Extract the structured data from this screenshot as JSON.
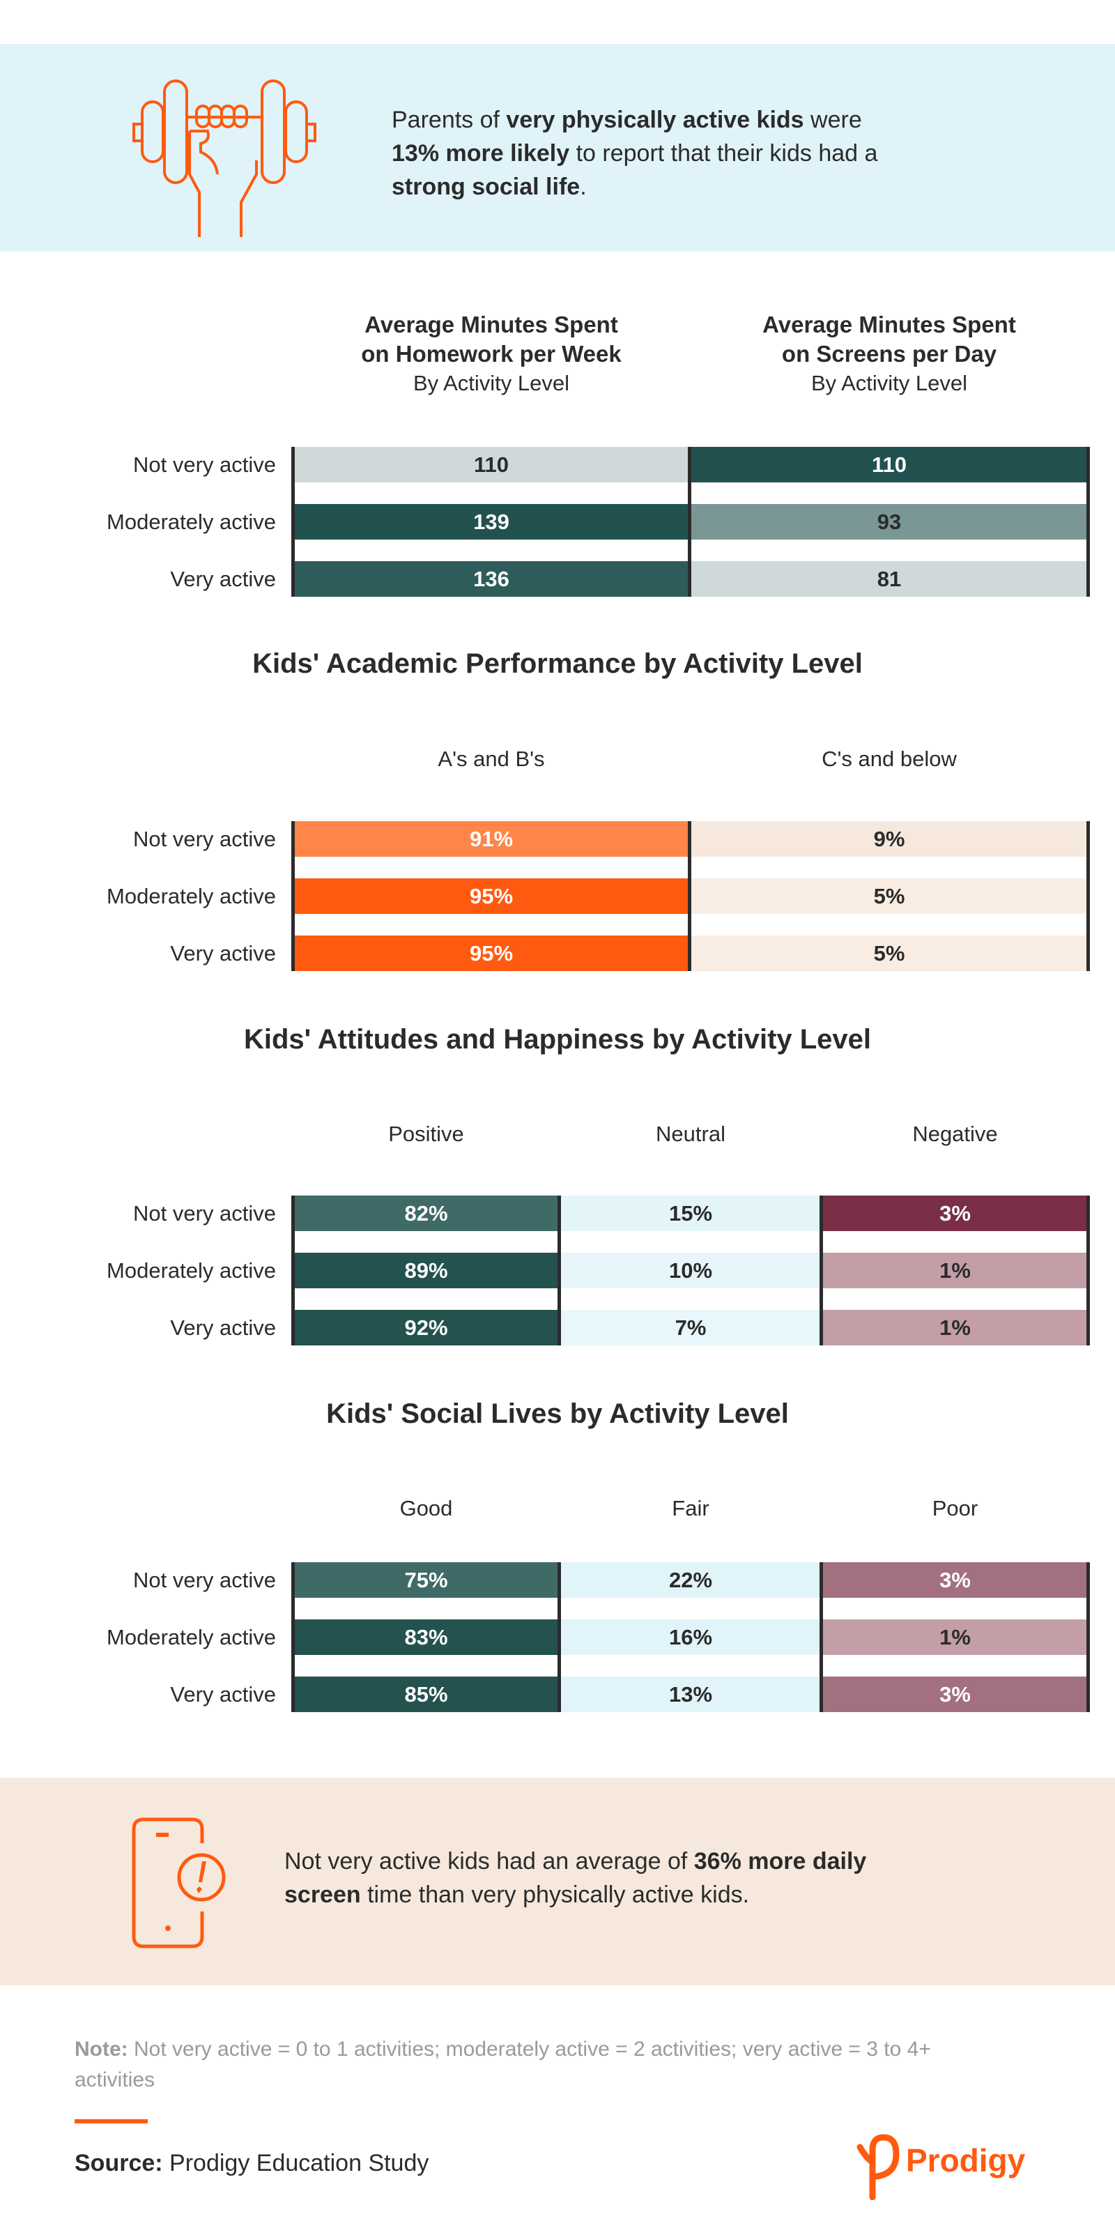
{
  "colors": {
    "accent": "#ff5a0f",
    "text": "#2b2b2b",
    "top_banner": "#dff3f9",
    "bottom_banner": "#f6e8dc"
  },
  "top_callout": {
    "icon": "dumbbell-hand-icon",
    "line1": {
      "a": "Parents of ",
      "b": "very physically active kids",
      "c": " were"
    },
    "line2": {
      "a": "13% more likely",
      "b": " to report that their kids had a"
    },
    "line3": {
      "a": "strong social life",
      "b": "."
    }
  },
  "chart_data": [
    {
      "type": "table",
      "columns": [
        {
          "heading": "Average Minutes Spent",
          "heading2": "on Homework per Week",
          "subheading": "By Activity Level"
        },
        {
          "heading": "Average Minutes Spent",
          "heading2": "on Screens per Day",
          "subheading": "By Activity Level"
        }
      ],
      "rows": [
        {
          "label": "Not very active",
          "cells": [
            {
              "value": "110",
              "color": "#cfd9da",
              "text": "#2b2b2b"
            },
            {
              "value": "110",
              "color": "#22524f",
              "text": "#ffffff"
            }
          ]
        },
        {
          "label": "Moderately active",
          "cells": [
            {
              "value": "139",
              "color": "#22524f",
              "text": "#ffffff"
            },
            {
              "value": "93",
              "color": "#7a9795",
              "text": "#2b2b2b"
            }
          ]
        },
        {
          "label": "Very active",
          "cells": [
            {
              "value": "136",
              "color": "#2e5c5b",
              "text": "#ffffff"
            },
            {
              "value": "81",
              "color": "#cfd9da",
              "text": "#2b2b2b"
            }
          ]
        }
      ]
    },
    {
      "type": "table",
      "title": "Kids' Academic Performance by Activity Level",
      "columns": [
        {
          "heading": "A's and B's"
        },
        {
          "heading": "C's and below"
        }
      ],
      "rows": [
        {
          "label": "Not very active",
          "cells": [
            {
              "value": "91%",
              "color": "#ff8548",
              "text": "#ffffff"
            },
            {
              "value": "9%",
              "color": "#f6e8dc",
              "text": "#2b2b2b"
            }
          ]
        },
        {
          "label": "Moderately active",
          "cells": [
            {
              "value": "95%",
              "color": "#ff5a0f",
              "text": "#ffffff"
            },
            {
              "value": "5%",
              "color": "#f9ede3",
              "text": "#2b2b2b"
            }
          ]
        },
        {
          "label": "Very active",
          "cells": [
            {
              "value": "95%",
              "color": "#ff5a0f",
              "text": "#ffffff"
            },
            {
              "value": "5%",
              "color": "#f9ede3",
              "text": "#2b2b2b"
            }
          ]
        }
      ]
    },
    {
      "type": "table",
      "title": "Kids' Attitudes and Happiness by Activity Level",
      "columns": [
        {
          "heading": "Positive"
        },
        {
          "heading": "Neutral"
        },
        {
          "heading": "Negative"
        }
      ],
      "rows": [
        {
          "label": "Not very active",
          "cells": [
            {
              "value": "82%",
              "color": "#3f6a67",
              "text": "#ffffff"
            },
            {
              "value": "15%",
              "color": "#e4f5fa",
              "text": "#2b2b2b"
            },
            {
              "value": "3%",
              "color": "#7a2e47",
              "text": "#ffffff"
            }
          ]
        },
        {
          "label": "Moderately active",
          "cells": [
            {
              "value": "89%",
              "color": "#23524f",
              "text": "#ffffff"
            },
            {
              "value": "10%",
              "color": "#e6f6fb",
              "text": "#2b2b2b"
            },
            {
              "value": "1%",
              "color": "#c39ea7",
              "text": "#2b2b2b"
            }
          ]
        },
        {
          "label": "Very active",
          "cells": [
            {
              "value": "92%",
              "color": "#23524f",
              "text": "#ffffff"
            },
            {
              "value": "7%",
              "color": "#e8f7fb",
              "text": "#2b2b2b"
            },
            {
              "value": "1%",
              "color": "#c39ea7",
              "text": "#2b2b2b"
            }
          ]
        }
      ]
    },
    {
      "type": "table",
      "title": "Kids' Social Lives by Activity Level",
      "columns": [
        {
          "heading": "Good"
        },
        {
          "heading": "Fair"
        },
        {
          "heading": "Poor"
        }
      ],
      "rows": [
        {
          "label": "Not very active",
          "cells": [
            {
              "value": "75%",
              "color": "#3f6a67",
              "text": "#ffffff"
            },
            {
              "value": "22%",
              "color": "#e0f4fa",
              "text": "#2b2b2b"
            },
            {
              "value": "3%",
              "color": "#a3707f",
              "text": "#ffffff"
            }
          ]
        },
        {
          "label": "Moderately active",
          "cells": [
            {
              "value": "83%",
              "color": "#23524f",
              "text": "#ffffff"
            },
            {
              "value": "16%",
              "color": "#e0f4fa",
              "text": "#2b2b2b"
            },
            {
              "value": "1%",
              "color": "#c39ea7",
              "text": "#2b2b2b"
            }
          ]
        },
        {
          "label": "Very active",
          "cells": [
            {
              "value": "85%",
              "color": "#23524f",
              "text": "#ffffff"
            },
            {
              "value": "13%",
              "color": "#e0f4fa",
              "text": "#2b2b2b"
            },
            {
              "value": "3%",
              "color": "#a3707f",
              "text": "#ffffff"
            }
          ]
        }
      ]
    }
  ],
  "bottom_callout": {
    "icon": "phone-alert-icon",
    "line1": {
      "a": "Not very active kids had an average of ",
      "b": "36% more daily"
    },
    "line2": {
      "a": "screen",
      "b": " time than very physically active kids."
    }
  },
  "footer": {
    "note_label": "Note:",
    "note_text": " Not very active = 0 to 1 activities; moderately active = 2 activities; very active = 3 to 4+ activities",
    "source_label": "Source:",
    "source_text": " Prodigy Education Study",
    "logo_text": "Prodigy"
  }
}
